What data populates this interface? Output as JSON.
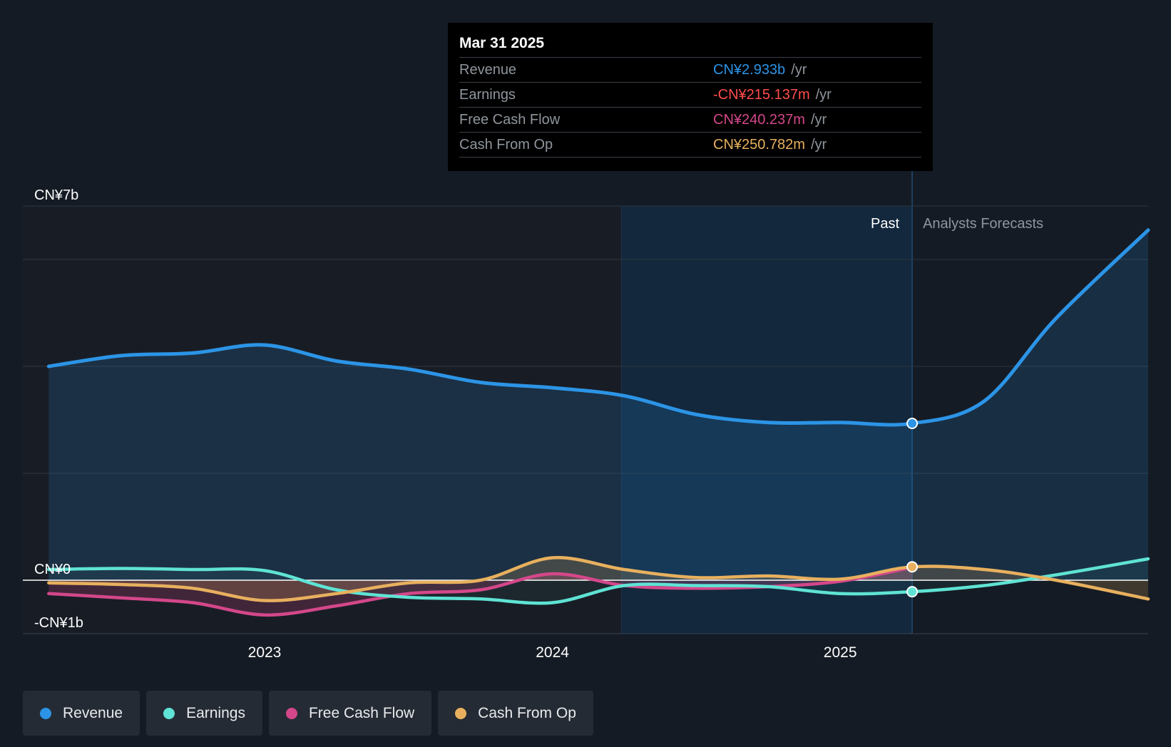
{
  "colors": {
    "background": "#151b24",
    "revenue": "#2c94e6",
    "earnings": "#5fe3d4",
    "free_cash_flow": "#d4478a",
    "cash_from_op": "#e8b05e",
    "negative_earnings_text": "#ff4d4d"
  },
  "tooltip": {
    "date": "Mar 31 2025",
    "rows": [
      {
        "label": "Revenue",
        "value": "CN¥2.933b",
        "unit": "/yr"
      },
      {
        "label": "Earnings",
        "value": "-CN¥215.137m",
        "unit": "/yr"
      },
      {
        "label": "Free Cash Flow",
        "value": "CN¥240.237m",
        "unit": "/yr"
      },
      {
        "label": "Cash From Op",
        "value": "CN¥250.782m",
        "unit": "/yr"
      }
    ]
  },
  "legend": {
    "items": [
      {
        "label": "Revenue",
        "color": "#2c94e6"
      },
      {
        "label": "Earnings",
        "color": "#5fe3d4"
      },
      {
        "label": "Free Cash Flow",
        "color": "#d4478a"
      },
      {
        "label": "Cash From Op",
        "color": "#e8b05e"
      }
    ]
  },
  "chart_data": {
    "type": "line",
    "title": "",
    "xlabel": "",
    "ylabel": "",
    "y_unit": "CN¥ billions",
    "ylim": [
      -1,
      7
    ],
    "y_tick_labels": [
      {
        "value": 7,
        "label": "CN¥7b"
      },
      {
        "value": 0,
        "label": "CN¥0"
      },
      {
        "value": -1,
        "label": "-CN¥1b"
      }
    ],
    "gridlines": [
      7,
      6,
      4,
      2
    ],
    "x_tick_labels": [
      {
        "value": 2023.0,
        "label": "2023"
      },
      {
        "value": 2024.0,
        "label": "2024"
      },
      {
        "value": 2025.0,
        "label": "2025"
      }
    ],
    "xlim": [
      2022.16,
      2026.07
    ],
    "highlight_start": 2024.24,
    "past_end": 2025.25,
    "past_label": "Past",
    "forecast_label": "Analysts Forecasts",
    "grid": true,
    "legend_position": "bottom-left",
    "series": [
      {
        "name": "Revenue",
        "key": "revenue",
        "points": [
          [
            2022.25,
            4.0
          ],
          [
            2022.5,
            4.2
          ],
          [
            2022.75,
            4.25
          ],
          [
            2023.0,
            4.4
          ],
          [
            2023.25,
            4.1
          ],
          [
            2023.5,
            3.95
          ],
          [
            2023.75,
            3.7
          ],
          [
            2024.0,
            3.6
          ],
          [
            2024.25,
            3.45
          ],
          [
            2024.5,
            3.1
          ],
          [
            2024.75,
            2.95
          ],
          [
            2025.0,
            2.95
          ],
          [
            2025.25,
            2.933
          ],
          [
            2025.5,
            3.35
          ],
          [
            2025.75,
            4.9
          ],
          [
            2026.07,
            6.55
          ]
        ]
      },
      {
        "name": "Earnings",
        "key": "earnings",
        "points": [
          [
            2022.25,
            0.2
          ],
          [
            2022.5,
            0.22
          ],
          [
            2022.75,
            0.2
          ],
          [
            2023.0,
            0.18
          ],
          [
            2023.25,
            -0.18
          ],
          [
            2023.5,
            -0.32
          ],
          [
            2023.75,
            -0.35
          ],
          [
            2024.0,
            -0.42
          ],
          [
            2024.25,
            -0.1
          ],
          [
            2024.5,
            -0.1
          ],
          [
            2024.75,
            -0.12
          ],
          [
            2025.0,
            -0.25
          ],
          [
            2025.25,
            -0.215
          ],
          [
            2025.5,
            -0.1
          ],
          [
            2025.75,
            0.1
          ],
          [
            2026.07,
            0.4
          ]
        ]
      },
      {
        "name": "Free Cash Flow",
        "key": "free_cash_flow",
        "points": [
          [
            2022.25,
            -0.25
          ],
          [
            2022.5,
            -0.33
          ],
          [
            2022.75,
            -0.42
          ],
          [
            2023.0,
            -0.65
          ],
          [
            2023.25,
            -0.48
          ],
          [
            2023.5,
            -0.25
          ],
          [
            2023.75,
            -0.18
          ],
          [
            2024.0,
            0.12
          ],
          [
            2024.25,
            -0.1
          ],
          [
            2024.5,
            -0.15
          ],
          [
            2024.75,
            -0.12
          ],
          [
            2025.0,
            -0.02
          ],
          [
            2025.25,
            0.24
          ]
        ]
      },
      {
        "name": "Cash From Op",
        "key": "cash_from_op",
        "points": [
          [
            2022.25,
            -0.05
          ],
          [
            2022.5,
            -0.08
          ],
          [
            2022.75,
            -0.15
          ],
          [
            2023.0,
            -0.38
          ],
          [
            2023.25,
            -0.25
          ],
          [
            2023.5,
            -0.05
          ],
          [
            2023.75,
            0.0
          ],
          [
            2024.0,
            0.42
          ],
          [
            2024.25,
            0.2
          ],
          [
            2024.5,
            0.05
          ],
          [
            2024.75,
            0.08
          ],
          [
            2025.0,
            0.02
          ],
          [
            2025.25,
            0.25
          ],
          [
            2025.5,
            0.2
          ],
          [
            2025.75,
            0.0
          ],
          [
            2026.07,
            -0.35
          ]
        ]
      }
    ]
  }
}
